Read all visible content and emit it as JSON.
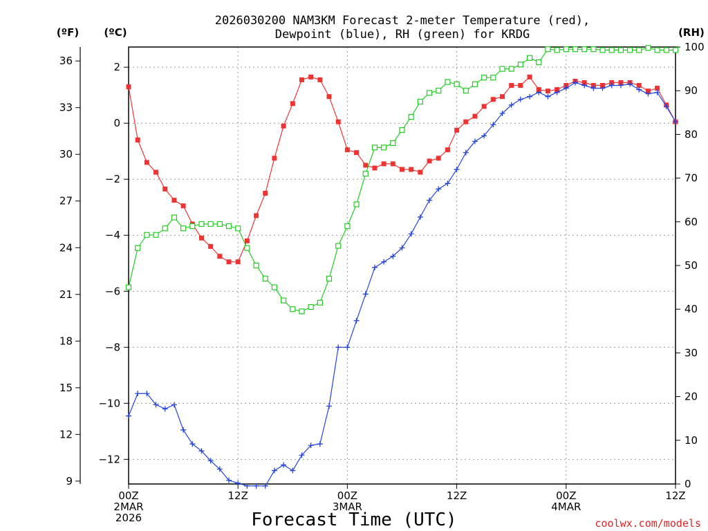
{
  "chart_data": {
    "type": "line",
    "title": [
      "2026030200 NAM3KM Forecast 2-meter Temperature (red),",
      "Dewpoint (blue), RH (green) for KRDG"
    ],
    "xlabel": "Forecast Time (UTC)",
    "credit": "coolwx.com/models",
    "unit_labels": {
      "fahrenheit": "(ºF)",
      "celsius": "(ºC)",
      "rh": "(RH)"
    },
    "x_range_hours": [
      0,
      60
    ],
    "x_ticks": [
      {
        "hour": 0,
        "label": [
          "00Z",
          "2MAR",
          "2026"
        ]
      },
      {
        "hour": 12,
        "label": [
          "12Z"
        ]
      },
      {
        "hour": 24,
        "label": [
          "00Z",
          "3MAR"
        ]
      },
      {
        "hour": 36,
        "label": [
          "12Z"
        ]
      },
      {
        "hour": 48,
        "label": [
          "00Z",
          "4MAR"
        ]
      },
      {
        "hour": 60,
        "label": [
          "12Z"
        ]
      }
    ],
    "y_celsius": {
      "range": [
        -12.88,
        2.72
      ],
      "ticks": [
        -12,
        -10,
        -8,
        -6,
        -4,
        -2,
        0,
        2
      ]
    },
    "y_fahrenheit": {
      "ticks": [
        9,
        12,
        15,
        18,
        21,
        24,
        27,
        30,
        33,
        36
      ]
    },
    "y_rh": {
      "range": [
        0,
        100
      ],
      "ticks": [
        0,
        10,
        20,
        30,
        40,
        50,
        60,
        70,
        80,
        90,
        100
      ]
    },
    "series": [
      {
        "name": "Temperature",
        "color": "#ee3333",
        "axis": "celsius",
        "marker": "filled-square",
        "values": [
          1.3,
          -0.6,
          -1.4,
          -1.75,
          -2.35,
          -2.75,
          -2.95,
          -3.6,
          -4.1,
          -4.4,
          -4.75,
          -4.95,
          -4.95,
          -4.2,
          -3.3,
          -2.5,
          -1.25,
          -0.1,
          0.7,
          1.55,
          1.65,
          1.55,
          0.95,
          0.05,
          -0.95,
          -1.05,
          -1.5,
          -1.6,
          -1.45,
          -1.45,
          -1.65,
          -1.65,
          -1.75,
          -1.35,
          -1.25,
          -0.95,
          -0.25,
          0.05,
          0.25,
          0.6,
          0.85,
          0.95,
          1.35,
          1.35,
          1.65,
          1.2,
          1.15,
          1.2,
          1.35,
          1.5,
          1.45,
          1.35,
          1.35,
          1.45,
          1.45,
          1.45,
          1.35,
          1.15,
          1.25,
          0.65,
          0.05
        ]
      },
      {
        "name": "Dewpoint",
        "color": "#2244dd",
        "axis": "celsius",
        "marker": "plus",
        "values": [
          -10.45,
          -9.65,
          -9.65,
          -10.05,
          -10.2,
          -10.05,
          -10.95,
          -11.45,
          -11.7,
          -12.05,
          -12.35,
          -12.75,
          -12.85,
          -12.95,
          -12.95,
          -12.95,
          -12.4,
          -12.2,
          -12.4,
          -11.85,
          -11.5,
          -11.45,
          -10.1,
          -8.0,
          -8.0,
          -7.05,
          -6.1,
          -5.15,
          -4.95,
          -4.75,
          -4.45,
          -3.95,
          -3.35,
          -2.75,
          -2.35,
          -2.15,
          -1.65,
          -1.05,
          -0.65,
          -0.45,
          -0.05,
          0.35,
          0.65,
          0.85,
          0.95,
          1.1,
          0.95,
          1.1,
          1.25,
          1.45,
          1.35,
          1.25,
          1.25,
          1.35,
          1.35,
          1.4,
          1.2,
          1.05,
          1.1,
          0.6,
          0.05
        ]
      },
      {
        "name": "RH",
        "color": "#22cc22",
        "axis": "rh",
        "marker": "open-square",
        "values": [
          45,
          54,
          57,
          57,
          58.5,
          61,
          58.5,
          59,
          59.5,
          59.5,
          59.5,
          59,
          58.5,
          54,
          50,
          47,
          45,
          42,
          40,
          39.5,
          40.5,
          41.5,
          47,
          54.5,
          59,
          64,
          71,
          77,
          77,
          78,
          81,
          84,
          87.5,
          89.5,
          90,
          92,
          91.5,
          90,
          91.5,
          93,
          93,
          95,
          95,
          96,
          97.5,
          96.5,
          99.5,
          99.3,
          99.5,
          99.5,
          99.5,
          99.5,
          99.3,
          99.3,
          99.3,
          99.3,
          99.3,
          99.8,
          99.3,
          99.3,
          99.3
        ]
      }
    ]
  }
}
